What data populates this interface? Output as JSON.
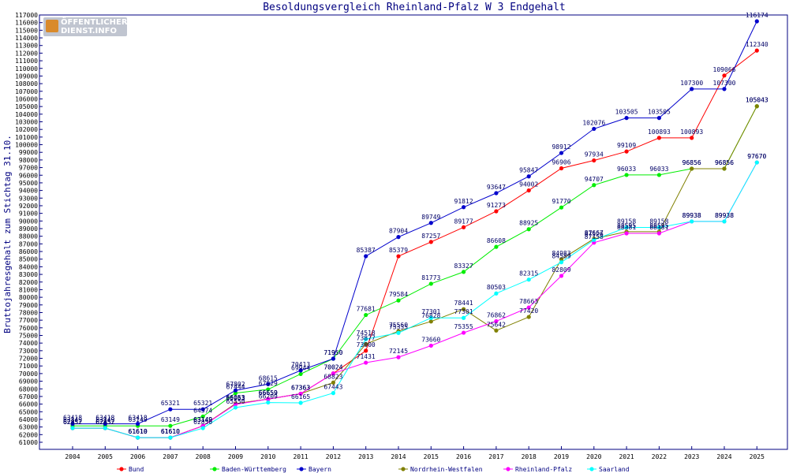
{
  "logo": {
    "line1": "ÖFFENTLICHER",
    "line2": "DIENST.INFO",
    "icon": "logo-icon"
  },
  "chart_data": {
    "type": "line",
    "title": "Besoldungsvergleich Rheinland-Pfalz W 3 Endgehalt",
    "xlabel": "",
    "ylabel": "Bruttojahresgehalt zum Stichtag 31.10.",
    "ylim": [
      61000,
      117000
    ],
    "ystep": 1000,
    "grid": false,
    "legend_position": "bottom",
    "x": [
      "2004",
      "2005",
      "2006",
      "2007",
      "2008",
      "2009",
      "2010",
      "2011",
      "2012",
      "2013",
      "2014",
      "2015",
      "2016",
      "2017",
      "2018",
      "2019",
      "2020",
      "2021",
      "2022",
      "2023",
      "2024",
      "2025"
    ],
    "series": [
      {
        "name": "Bund",
        "color": "#ff0000",
        "values": [
          62852,
          62852,
          61610,
          61610,
          63149,
          66053,
          66659,
          67363,
          70024,
          73000,
          85379,
          87257,
          89177,
          91273,
          94002,
          96906,
          97934,
          99109,
          100893,
          100893,
          109066,
          112340
        ]
      },
      {
        "name": "Baden-Württemberg",
        "color": "#00ee00",
        "values": [
          63149,
          63149,
          63149,
          63149,
          64374,
          67444,
          67929,
          69944,
          71950,
          77681,
          79584,
          81773,
          83327,
          86608,
          88925,
          91770,
          94707,
          96033,
          96033,
          96856,
          96856,
          105043
        ]
      },
      {
        "name": "Bayern",
        "color": "#0000cc",
        "values": [
          63418,
          63418,
          63418,
          65321,
          65321,
          67802,
          68615,
          70413,
          71950,
          85387,
          87904,
          89749,
          91812,
          93647,
          95847,
          98912,
          102076,
          103505,
          103505,
          107300,
          107300,
          116174
        ]
      },
      {
        "name": "Nordrhein-Westfalen",
        "color": "#808000",
        "values": [
          62852,
          62852,
          61610,
          61610,
          63149,
          66053,
          66659,
          67363,
          68823,
          73877,
          75560,
          76828,
          78441,
          75642,
          77420,
          84983,
          87667,
          88595,
          88595,
          96856,
          96856,
          105043
        ]
      },
      {
        "name": "Rheinland-Pfalz",
        "color": "#ff00ff",
        "values": [
          62852,
          62852,
          61610,
          61610,
          63149,
          65963,
          66659,
          67363,
          70024,
          71431,
          72145,
          73660,
          75355,
          76862,
          78663,
          82809,
          87158,
          88381,
          88381,
          89938,
          89938,
          97670
        ]
      },
      {
        "name": "Saarland",
        "color": "#00ffff",
        "values": [
          62852,
          62852,
          61610,
          61610,
          62850,
          65550,
          66209,
          66165,
          67443,
          74518,
          75335,
          77301,
          77301,
          80503,
          82315,
          84589,
          87526,
          89158,
          89158,
          89938,
          89938,
          97670
        ]
      }
    ]
  }
}
